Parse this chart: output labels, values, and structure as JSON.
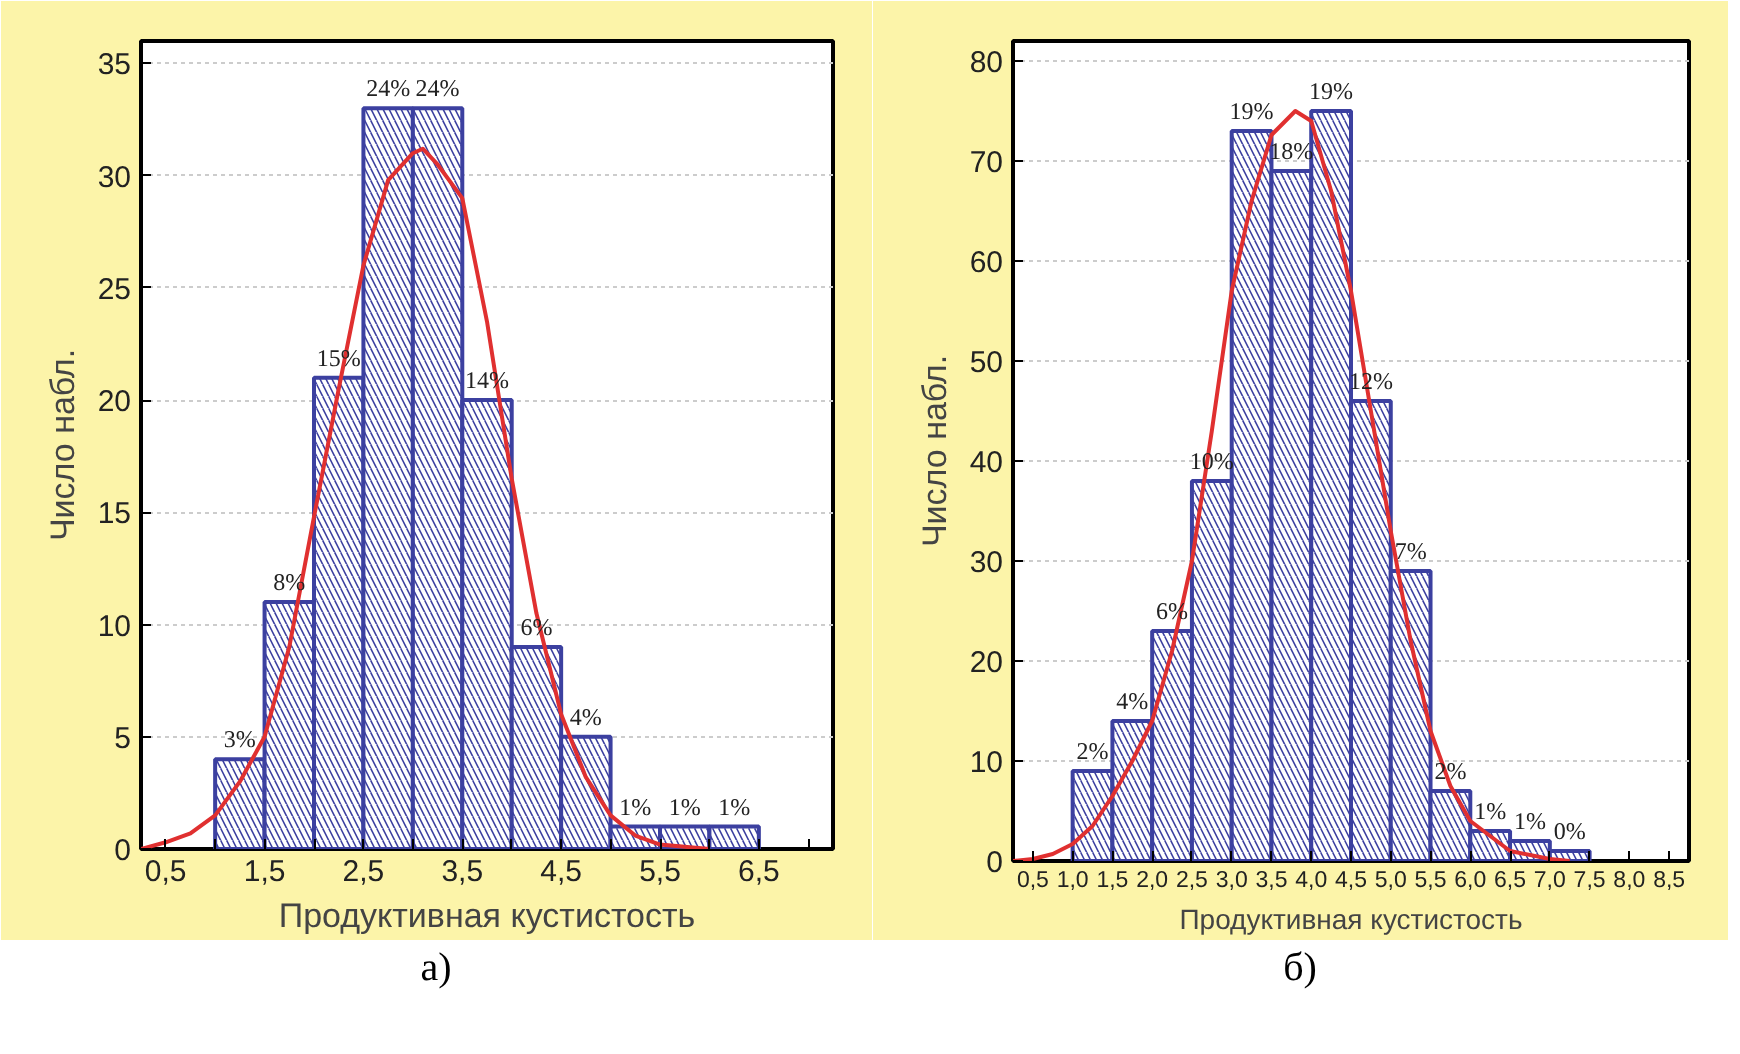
{
  "chart_data": [
    {
      "type": "histogram",
      "xlabel": "Продуктивная кустистость",
      "ylabel": "Число набл.",
      "bins": [
        1.0,
        1.5,
        2.0,
        2.5,
        3.0,
        3.5,
        4.0,
        4.5,
        5.0,
        5.5,
        6.0,
        6.5
      ],
      "values": [
        4,
        11,
        21,
        33,
        33,
        20,
        9,
        5,
        1,
        1,
        1
      ],
      "color": "#3c40a0",
      "series": [
        {
          "type": "line",
          "color": "#e03030",
          "x": [
            0.25,
            0.5,
            0.75,
            1.0,
            1.25,
            1.5,
            1.75,
            2.0,
            2.25,
            2.5,
            2.75,
            3.0,
            3.1,
            3.25,
            3.5,
            3.75,
            4.0,
            4.25,
            4.5,
            4.75,
            5.0,
            5.25,
            5.5,
            5.75,
            6.0
          ],
          "values": [
            0,
            0.3,
            0.7,
            1.5,
            3,
            5,
            9,
            14.8,
            20.5,
            26,
            29.8,
            31,
            31.2,
            30.5,
            29,
            23.5,
            16.5,
            10.5,
            6,
            3.2,
            1.5,
            0.6,
            0.2,
            0.1,
            0
          ]
        }
      ],
      "xlim": [
        0.25,
        7.25
      ],
      "ylim": [
        0,
        36
      ],
      "xticks": [
        {
          "value": 0.5,
          "label": "0,5"
        },
        {
          "value": 1.0,
          "label": null
        },
        {
          "value": 1.5,
          "label": "1,5"
        },
        {
          "value": 2.0,
          "label": null
        },
        {
          "value": 2.5,
          "label": "2,5"
        },
        {
          "value": 3.0,
          "label": null
        },
        {
          "value": 3.5,
          "label": "3,5"
        },
        {
          "value": 4.0,
          "label": null
        },
        {
          "value": 4.5,
          "label": "4,5"
        },
        {
          "value": 5.0,
          "label": null
        },
        {
          "value": 5.5,
          "label": "5,5"
        },
        {
          "value": 6.0,
          "label": null
        },
        {
          "value": 6.5,
          "label": "6,5"
        },
        {
          "value": 7.0,
          "label": null
        }
      ],
      "yticks": [
        0,
        5,
        10,
        15,
        20,
        25,
        30,
        35
      ],
      "grid": "y",
      "annotations": [
        {
          "text": "3%",
          "x": 1.25,
          "y": 4
        },
        {
          "text": "8%",
          "x": 1.75,
          "y": 11
        },
        {
          "text": "15%",
          "x": 2.25,
          "y": 21
        },
        {
          "text": "24%",
          "x": 2.75,
          "y": 33
        },
        {
          "text": "24%",
          "x": 3.25,
          "y": 33
        },
        {
          "text": "14%",
          "x": 3.75,
          "y": 20
        },
        {
          "text": "6%",
          "x": 4.25,
          "y": 9
        },
        {
          "text": "4%",
          "x": 4.75,
          "y": 5
        },
        {
          "text": "1%",
          "x": 5.25,
          "y": 1
        },
        {
          "text": "1%",
          "x": 5.75,
          "y": 1
        },
        {
          "text": "1%",
          "x": 6.25,
          "y": 1
        },
        "а)"
      ]
    },
    {
      "type": "histogram",
      "xlabel": "Продуктивная кустистость",
      "ylabel": "Число набл.",
      "bins": [
        1.0,
        1.5,
        2.0,
        2.5,
        3.0,
        3.5,
        4.0,
        4.5,
        5.0,
        5.5,
        6.0,
        6.5,
        7.0,
        7.5
      ],
      "values": [
        9,
        14,
        23,
        38,
        73,
        69,
        75,
        46,
        29,
        7,
        3,
        2,
        1
      ],
      "color": "#3c40a0",
      "series": [
        {
          "type": "line",
          "color": "#e03030",
          "x": [
            0.25,
            0.5,
            0.75,
            1.0,
            1.25,
            1.5,
            1.75,
            2.0,
            2.25,
            2.5,
            2.75,
            3.0,
            3.25,
            3.5,
            3.8,
            4.0,
            4.25,
            4.5,
            4.75,
            5.0,
            5.25,
            5.5,
            5.75,
            6.0,
            6.5,
            7.0,
            7.25
          ],
          "values": [
            0,
            0.2,
            0.7,
            1.7,
            3.5,
            6.5,
            10,
            14,
            21,
            30,
            43,
            57,
            66,
            72.6,
            75,
            74,
            67,
            57,
            45,
            33,
            22,
            13,
            7.5,
            4,
            1,
            0.2,
            0
          ]
        }
      ],
      "xlim": [
        0.25,
        8.75
      ],
      "ylim": [
        0,
        82
      ],
      "xticks": [
        {
          "value": 0.5,
          "label": "0,5"
        },
        {
          "value": 1.0,
          "label": "1,0"
        },
        {
          "value": 1.5,
          "label": "1,5"
        },
        {
          "value": 2.0,
          "label": "2,0"
        },
        {
          "value": 2.5,
          "label": "2,5"
        },
        {
          "value": 3.0,
          "label": "3,0"
        },
        {
          "value": 3.5,
          "label": "3,5"
        },
        {
          "value": 4.0,
          "label": "4,0"
        },
        {
          "value": 4.5,
          "label": "4,5"
        },
        {
          "value": 5.0,
          "label": "5,0"
        },
        {
          "value": 5.5,
          "label": "5,5"
        },
        {
          "value": 6.0,
          "label": "6,0"
        },
        {
          "value": 6.5,
          "label": "6,5"
        },
        {
          "value": 7.0,
          "label": "7,0"
        },
        {
          "value": 7.5,
          "label": "7,5"
        },
        {
          "value": 8.0,
          "label": "8,0"
        },
        {
          "value": 8.5,
          "label": "8,5"
        }
      ],
      "yticks": [
        0,
        10,
        20,
        30,
        40,
        50,
        60,
        70,
        80
      ],
      "grid": "y",
      "annotations": [
        {
          "text": "2%",
          "x": 1.25,
          "y": 9
        },
        {
          "text": "4%",
          "x": 1.75,
          "y": 14
        },
        {
          "text": "6%",
          "x": 2.25,
          "y": 23
        },
        {
          "text": "10%",
          "x": 2.75,
          "y": 38
        },
        {
          "text": "19%",
          "x": 3.25,
          "y": 73
        },
        {
          "text": "18%",
          "x": 3.75,
          "y": 69
        },
        {
          "text": "19%",
          "x": 4.25,
          "y": 75
        },
        {
          "text": "12%",
          "x": 4.75,
          "y": 46
        },
        {
          "text": "7%",
          "x": 5.25,
          "y": 29
        },
        {
          "text": "2%",
          "x": 5.75,
          "y": 7
        },
        {
          "text": "1%",
          "x": 6.25,
          "y": 3
        },
        {
          "text": "1%",
          "x": 6.75,
          "y": 2
        },
        {
          "text": "0%",
          "x": 7.25,
          "y": 1
        },
        "б)"
      ]
    }
  ]
}
